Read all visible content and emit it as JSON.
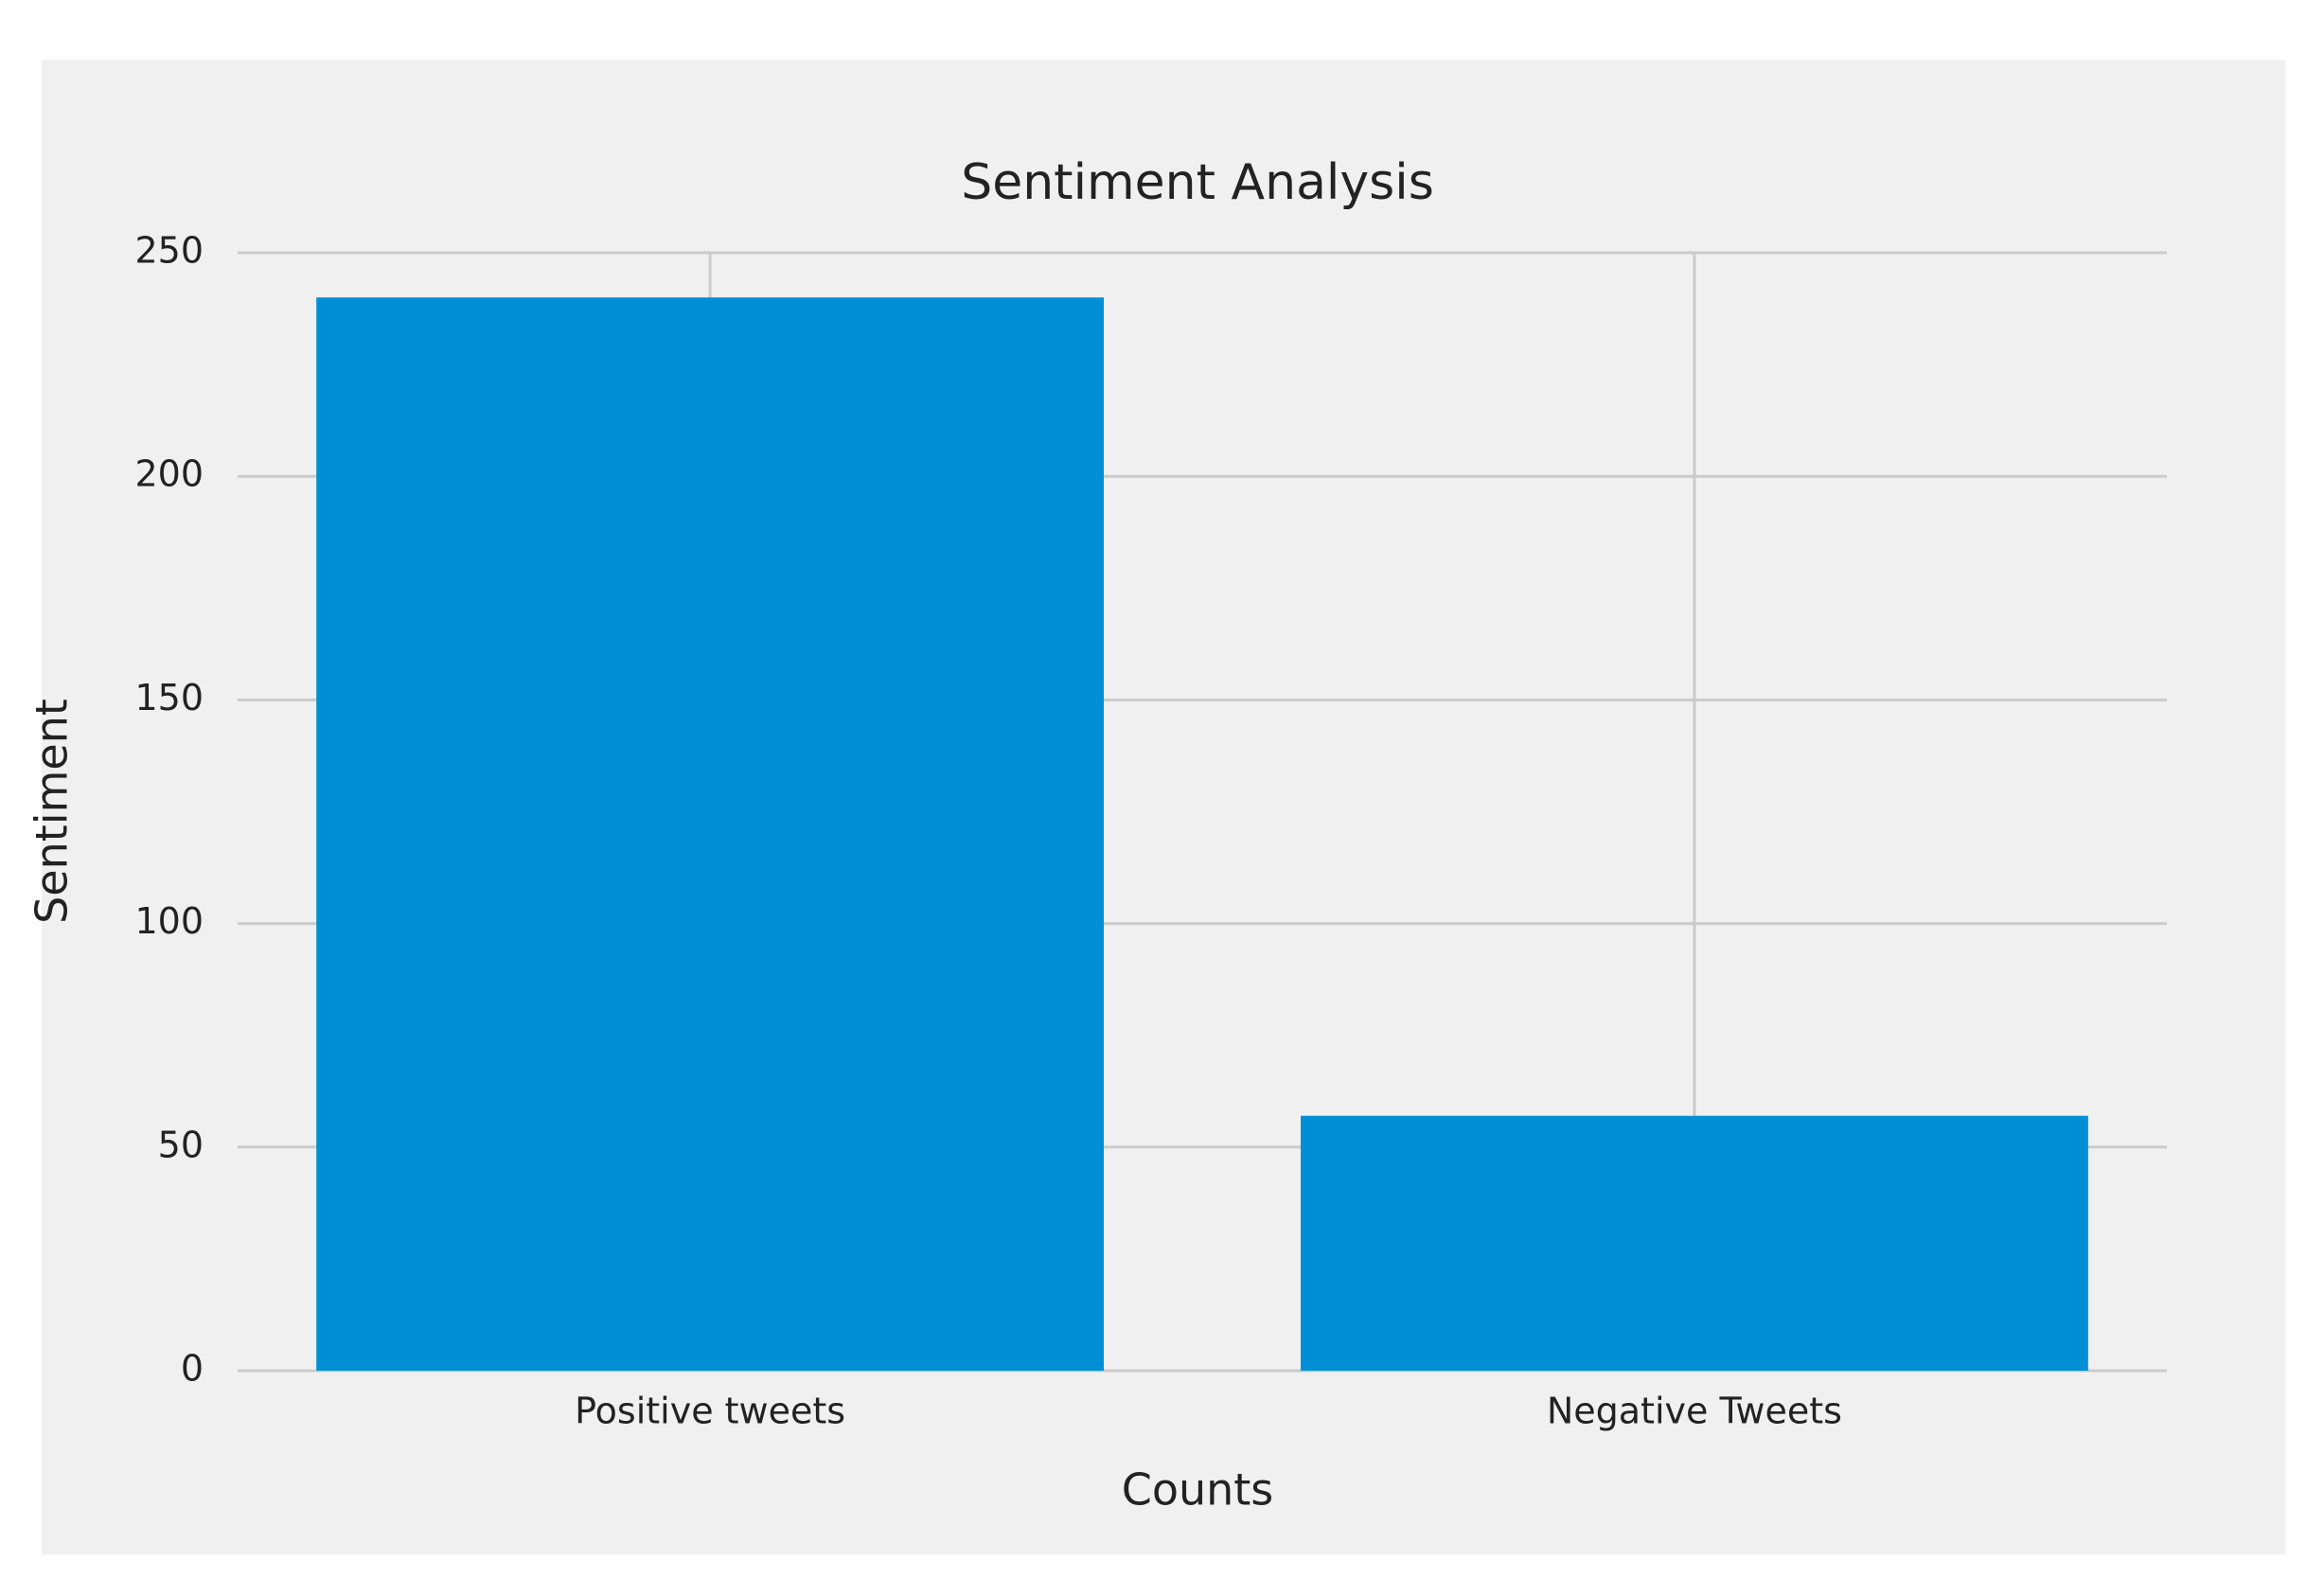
{
  "chart_data": {
    "type": "bar",
    "title": "Sentiment Analysis",
    "x_label": "Counts",
    "y_label": "Sentiment",
    "categories": [
      "Positive tweets",
      "Negative Tweets"
    ],
    "values": [
      240,
      57
    ],
    "color": "#008fd5",
    "ylim": [
      0,
      250
    ],
    "yticks": [
      0,
      50,
      100,
      150,
      200,
      250
    ],
    "grid": true
  }
}
